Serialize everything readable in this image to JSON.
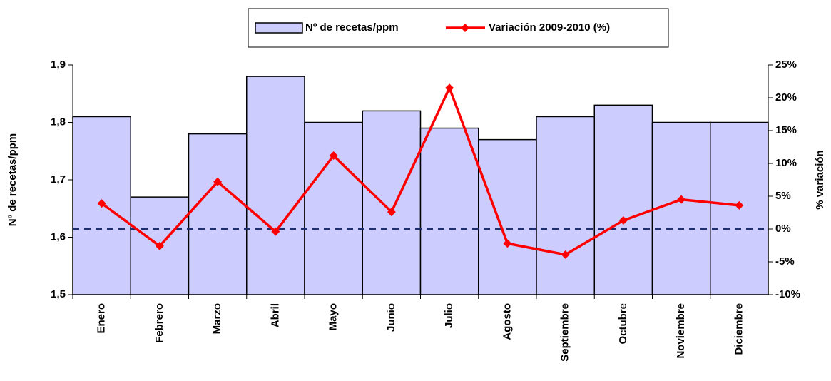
{
  "chart_data": {
    "type": "bar_line",
    "categories": [
      "Enero",
      "Febrero",
      "Marzo",
      "Abril",
      "Mayo",
      "Junio",
      "Julio",
      "Agosto",
      "Septiembre",
      "Octubre",
      "Noviembre",
      "Diciembre"
    ],
    "series": [
      {
        "name": "Nº de recetas/ppm",
        "type": "bar",
        "color": "#ccccff",
        "values": [
          1.81,
          1.67,
          1.78,
          1.88,
          1.8,
          1.82,
          1.79,
          1.77,
          1.81,
          1.83,
          1.8,
          1.8
        ]
      },
      {
        "name": "Variación 2009-2010 (%)",
        "type": "line",
        "axis": "y2",
        "color": "#ff0000",
        "values": [
          3.9,
          -2.6,
          7.2,
          -0.4,
          11.2,
          2.6,
          21.5,
          -2.2,
          -3.9,
          1.3,
          4.5,
          3.6
        ]
      }
    ],
    "ylabel": "Nº de recetas/ppm",
    "y2label": "% variación",
    "ylim": [
      1.5,
      1.9
    ],
    "yticks": [
      {
        "value": 1.5,
        "label": "1,5"
      },
      {
        "value": 1.6,
        "label": "1,6"
      },
      {
        "value": 1.7,
        "label": "1,7"
      },
      {
        "value": 1.8,
        "label": "1,8"
      },
      {
        "value": 1.9,
        "label": "1,9"
      }
    ],
    "y2lim": [
      -10,
      25
    ],
    "y2ticks": [
      {
        "value": -10,
        "label": "-10%"
      },
      {
        "value": -5,
        "label": "-5%"
      },
      {
        "value": 0,
        "label": "0%"
      },
      {
        "value": 5,
        "label": "5%"
      },
      {
        "value": 10,
        "label": "10%"
      },
      {
        "value": 15,
        "label": "15%"
      },
      {
        "value": 20,
        "label": "20%"
      },
      {
        "value": 25,
        "label": "25%"
      }
    ],
    "reference_line_y2": 0,
    "legend": "top",
    "grid": false
  }
}
